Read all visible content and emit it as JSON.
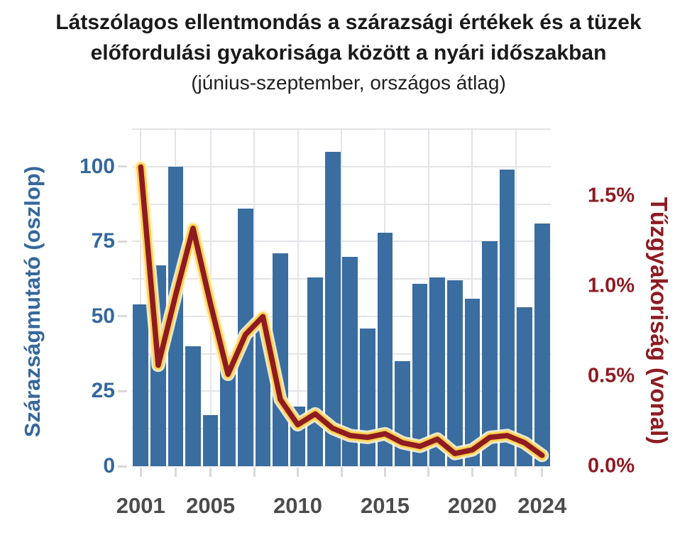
{
  "title": {
    "line1": "Látszólagos ellentmondás a szárazsági értékek és a tüzek",
    "line2": "előfordulási gyakorisága között a nyári időszakban",
    "line3": "(június-szeptember, országos átlag)"
  },
  "colors": {
    "bar": "#3a6da0",
    "line": "#8e1b22",
    "line_outline": "#ffd34f",
    "line_glow": "#fdf3cf",
    "left_axis_text": "#35689c",
    "right_axis_text": "#8e1b22",
    "x_axis_text": "#4c4c4c",
    "grid": "#e4e4e8",
    "tick_dash": "#d9d9d9",
    "background": "#ffffff"
  },
  "chart_data": {
    "type": "bar",
    "note_type": "dual-axis bar + line combo",
    "x": [
      2001,
      2002,
      2003,
      2004,
      2005,
      2006,
      2007,
      2008,
      2009,
      2010,
      2011,
      2012,
      2013,
      2014,
      2015,
      2016,
      2017,
      2018,
      2019,
      2020,
      2021,
      2022,
      2023,
      2024
    ],
    "series": [
      {
        "name": "Szárazságmutató",
        "render": "bar",
        "axis": "left",
        "values": [
          54,
          67,
          100,
          40,
          17,
          37,
          86,
          46,
          71,
          20,
          63,
          105,
          70,
          46,
          78,
          35,
          61,
          63,
          62,
          56,
          75,
          99,
          53,
          81
        ]
      },
      {
        "name": "Tűzgyakoriság",
        "render": "line",
        "axis": "right",
        "values_percent": [
          1.66,
          0.56,
          0.95,
          1.32,
          0.9,
          0.51,
          0.73,
          0.83,
          0.37,
          0.23,
          0.29,
          0.21,
          0.17,
          0.16,
          0.18,
          0.13,
          0.11,
          0.15,
          0.07,
          0.09,
          0.16,
          0.17,
          0.13,
          0.06
        ]
      }
    ],
    "left_axis": {
      "label": "Szárazságmutató (oszlop)",
      "ticks": [
        0,
        25,
        50,
        75,
        100
      ],
      "range": [
        0,
        113
      ],
      "grid_values": [
        0,
        12.5,
        25,
        37.5,
        50,
        62.5,
        75,
        87.5,
        100,
        112.5
      ]
    },
    "right_axis": {
      "label": "Tűzgyakoriság (vonal)",
      "ticks": [
        "0.0%",
        "0.5%",
        "1.0%",
        "1.5%"
      ],
      "tick_values": [
        0,
        0.5,
        1.0,
        1.5
      ],
      "range": [
        0,
        1.878
      ]
    },
    "x_axis": {
      "tick_labels": [
        "2001",
        "2005",
        "2010",
        "2015",
        "2020",
        "2024"
      ],
      "tick_years": [
        2001,
        2005,
        2010,
        2015,
        2020,
        2024
      ],
      "grid_years": [
        2001,
        2003,
        2005,
        2007.5,
        2010,
        2012.5,
        2015,
        2017.5,
        2020,
        2022.5
      ],
      "bottom_dash_years": [
        2001,
        2003,
        2005,
        2007.5,
        2010,
        2012.5,
        2015,
        2017.5,
        2020,
        2022.5,
        2024
      ]
    },
    "grid": true,
    "legend_position": "none"
  }
}
